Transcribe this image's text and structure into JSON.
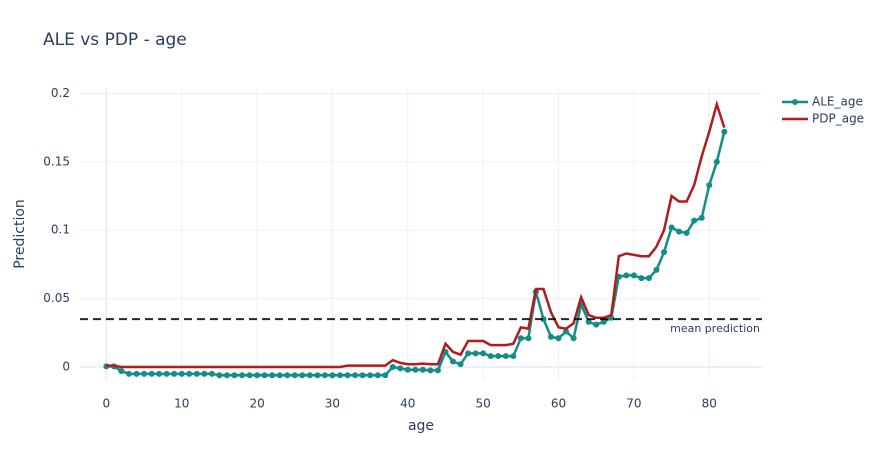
{
  "chart_data": {
    "type": "line",
    "title": "ALE vs PDP - age",
    "x_label": "age",
    "y_label": "Prediction",
    "x": [
      0,
      1,
      2,
      3,
      4,
      5,
      6,
      7,
      8,
      9,
      10,
      11,
      12,
      13,
      14,
      15,
      16,
      17,
      18,
      19,
      20,
      21,
      22,
      23,
      24,
      25,
      26,
      27,
      28,
      29,
      30,
      31,
      32,
      33,
      34,
      35,
      36,
      37,
      38,
      39,
      40,
      41,
      42,
      43,
      44,
      45,
      46,
      47,
      48,
      49,
      50,
      51,
      52,
      53,
      54,
      55,
      56,
      57,
      58,
      59,
      60,
      61,
      62,
      63,
      64,
      65,
      66,
      67,
      68,
      69,
      70,
      71,
      72,
      73,
      74,
      75,
      76,
      77,
      78,
      79,
      80,
      81,
      82
    ],
    "series": [
      {
        "name": "ALE_age",
        "color": "#138d88",
        "markers": true,
        "values": [
          0.0005,
          0.0005,
          -0.003,
          -0.005,
          -0.005,
          -0.005,
          -0.005,
          -0.005,
          -0.005,
          -0.005,
          -0.005,
          -0.005,
          -0.005,
          -0.005,
          -0.005,
          -0.006,
          -0.006,
          -0.006,
          -0.006,
          -0.006,
          -0.006,
          -0.006,
          -0.006,
          -0.006,
          -0.006,
          -0.006,
          -0.006,
          -0.006,
          -0.006,
          -0.006,
          -0.006,
          -0.006,
          -0.006,
          -0.006,
          -0.006,
          -0.006,
          -0.006,
          -0.006,
          0,
          -0.001,
          -0.002,
          -0.002,
          -0.002,
          -0.0025,
          -0.0025,
          0.011,
          0.004,
          0.002,
          0.01,
          0.01,
          0.01,
          0.008,
          0.008,
          0.008,
          0.008,
          0.021,
          0.021,
          0.055,
          0.035,
          0.022,
          0.021,
          0.026,
          0.021,
          0.046,
          0.033,
          0.031,
          0.033,
          0.036,
          0.066,
          0.067,
          0.067,
          0.065,
          0.065,
          0.071,
          0.084,
          0.102,
          0.099,
          0.098,
          0.107,
          0.109,
          0.133,
          0.15,
          0.172
        ]
      },
      {
        "name": "PDP_age",
        "color": "#b01c1c",
        "markers": false,
        "values": [
          0.001,
          0.001,
          0,
          0,
          0,
          0,
          0,
          0,
          0,
          0,
          0,
          0,
          0,
          0,
          0,
          0,
          0,
          0,
          0,
          0,
          0,
          0,
          0,
          0,
          0,
          0,
          0,
          0,
          0,
          0,
          0,
          0,
          0.001,
          0.001,
          0.001,
          0.001,
          0.001,
          0.001,
          0.005,
          0.003,
          0.002,
          0.002,
          0.0025,
          0.002,
          0.002,
          0.017,
          0.011,
          0.009,
          0.019,
          0.019,
          0.019,
          0.016,
          0.016,
          0.016,
          0.017,
          0.029,
          0.028,
          0.057,
          0.057,
          0.04,
          0.029,
          0.028,
          0.032,
          0.051,
          0.038,
          0.036,
          0.036,
          0.038,
          0.081,
          0.083,
          0.082,
          0.081,
          0.081,
          0.088,
          0.1,
          0.125,
          0.121,
          0.121,
          0.133,
          0.154,
          0.172,
          0.192,
          0.175
        ]
      }
    ],
    "reference_line": {
      "value": 0.035,
      "label": "mean prediction"
    },
    "xlim": [
      -3.5,
      87
    ],
    "xticks": [
      0,
      10,
      20,
      30,
      40,
      50,
      60,
      70,
      80
    ],
    "ylim": [
      -0.0095,
      0.204
    ],
    "yticks": [
      0,
      0.05,
      0.1,
      0.15,
      0.2
    ],
    "grid": true,
    "legend": "right"
  }
}
